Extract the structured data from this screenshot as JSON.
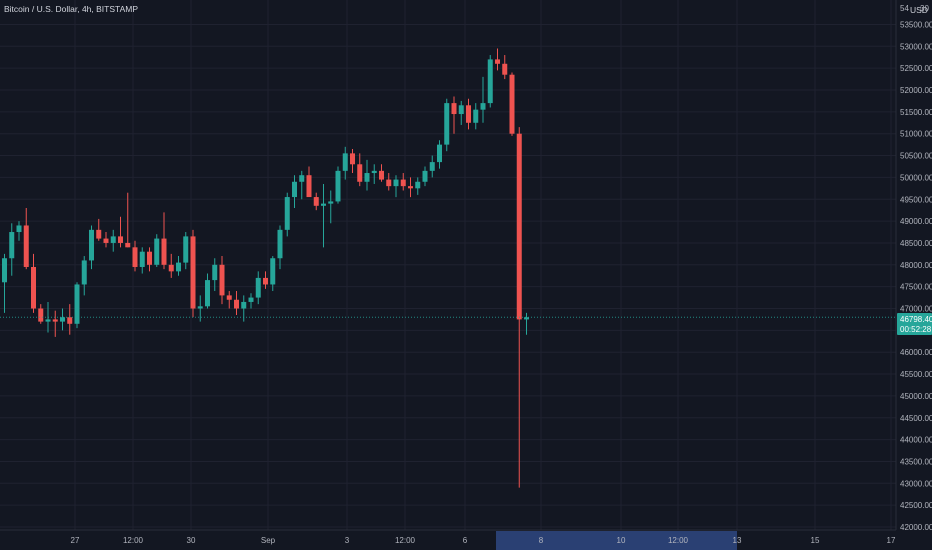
{
  "header": {
    "title": "Bitcoin / U.S. Dollar, 4h, BITSTAMP"
  },
  "price_axis": {
    "unit": "USD",
    "top_label": "54",
    "corner_label": "30"
  },
  "price_tag": {
    "price": "46798.40",
    "countdown": "00:52:28"
  },
  "time_axis": {
    "highlighted_date": "8"
  },
  "colors": {
    "background": "#131722",
    "grid": "#1f2230",
    "up": "#26a69a",
    "down": "#ef5350",
    "tag": "#26a69a",
    "time_highlight": "#2a4073"
  },
  "chart_data": {
    "type": "candlestick",
    "title": "Bitcoin / U.S. Dollar, 4h, BITSTAMP",
    "ylabel": "USD",
    "ylim": [
      41850,
      54300
    ],
    "y_ticks": [
      "42000.00",
      "42500.00",
      "43000.00",
      "43500.00",
      "44000.00",
      "44500.00",
      "45000.00",
      "45500.00",
      "46000.00",
      "46500.00",
      "47000.00",
      "47500.00",
      "48000.00",
      "48500.00",
      "49000.00",
      "49500.00",
      "50000.00",
      "50500.00",
      "51000.00",
      "51500.00",
      "52000.00",
      "52500.00",
      "53000.00",
      "53500.00"
    ],
    "x_tick_labels": [
      "27",
      "12:00",
      "30",
      "Sep",
      "3",
      "12:00",
      "6",
      "8",
      "10",
      "12:00",
      "13",
      "15",
      "17"
    ],
    "candles": [
      {
        "o": 47600,
        "h": 48250,
        "l": 46900,
        "c": 48150
      },
      {
        "o": 48150,
        "h": 48950,
        "l": 47750,
        "c": 48750
      },
      {
        "o": 48750,
        "h": 49000,
        "l": 48550,
        "c": 48900
      },
      {
        "o": 48900,
        "h": 49300,
        "l": 47900,
        "c": 47950
      },
      {
        "o": 47950,
        "h": 48250,
        "l": 46900,
        "c": 47000
      },
      {
        "o": 47000,
        "h": 47100,
        "l": 46650,
        "c": 46700
      },
      {
        "o": 46700,
        "h": 47150,
        "l": 46450,
        "c": 46750
      },
      {
        "o": 46750,
        "h": 46950,
        "l": 46350,
        "c": 46700
      },
      {
        "o": 46700,
        "h": 47000,
        "l": 46500,
        "c": 46800
      },
      {
        "o": 46800,
        "h": 47100,
        "l": 46400,
        "c": 46650
      },
      {
        "o": 46650,
        "h": 47600,
        "l": 46550,
        "c": 47550
      },
      {
        "o": 47550,
        "h": 48200,
        "l": 47300,
        "c": 48100
      },
      {
        "o": 48100,
        "h": 48900,
        "l": 47900,
        "c": 48800
      },
      {
        "o": 48800,
        "h": 49050,
        "l": 48550,
        "c": 48600
      },
      {
        "o": 48600,
        "h": 48750,
        "l": 48400,
        "c": 48500
      },
      {
        "o": 48500,
        "h": 48800,
        "l": 48300,
        "c": 48650
      },
      {
        "o": 48650,
        "h": 49100,
        "l": 48400,
        "c": 48500
      },
      {
        "o": 48500,
        "h": 49650,
        "l": 48400,
        "c": 48400
      },
      {
        "o": 48400,
        "h": 48550,
        "l": 47850,
        "c": 47950
      },
      {
        "o": 47950,
        "h": 48400,
        "l": 47800,
        "c": 48300
      },
      {
        "o": 48300,
        "h": 48400,
        "l": 47850,
        "c": 48000
      },
      {
        "o": 48000,
        "h": 48700,
        "l": 47950,
        "c": 48600
      },
      {
        "o": 48600,
        "h": 49200,
        "l": 47900,
        "c": 48000
      },
      {
        "o": 48000,
        "h": 48250,
        "l": 47700,
        "c": 47850
      },
      {
        "o": 47850,
        "h": 48200,
        "l": 47750,
        "c": 48050
      },
      {
        "o": 48050,
        "h": 48750,
        "l": 47900,
        "c": 48650
      },
      {
        "o": 48650,
        "h": 48800,
        "l": 46800,
        "c": 47000
      },
      {
        "o": 47000,
        "h": 47300,
        "l": 46700,
        "c": 47050
      },
      {
        "o": 47050,
        "h": 47800,
        "l": 47000,
        "c": 47650
      },
      {
        "o": 47650,
        "h": 48150,
        "l": 47400,
        "c": 48000
      },
      {
        "o": 48000,
        "h": 48200,
        "l": 47100,
        "c": 47300
      },
      {
        "o": 47300,
        "h": 47400,
        "l": 47000,
        "c": 47200
      },
      {
        "o": 47200,
        "h": 47400,
        "l": 46850,
        "c": 47000
      },
      {
        "o": 47000,
        "h": 47300,
        "l": 46700,
        "c": 47150
      },
      {
        "o": 47150,
        "h": 47350,
        "l": 47000,
        "c": 47250
      },
      {
        "o": 47250,
        "h": 47850,
        "l": 47100,
        "c": 47700
      },
      {
        "o": 47700,
        "h": 47850,
        "l": 47450,
        "c": 47550
      },
      {
        "o": 47550,
        "h": 48200,
        "l": 47400,
        "c": 48150
      },
      {
        "o": 48150,
        "h": 48900,
        "l": 47900,
        "c": 48800
      },
      {
        "o": 48800,
        "h": 49650,
        "l": 48650,
        "c": 49550
      },
      {
        "o": 49550,
        "h": 50050,
        "l": 49300,
        "c": 49900
      },
      {
        "o": 49900,
        "h": 50150,
        "l": 49500,
        "c": 50050
      },
      {
        "o": 50050,
        "h": 50250,
        "l": 49650,
        "c": 49550
      },
      {
        "o": 49550,
        "h": 49650,
        "l": 49250,
        "c": 49350
      },
      {
        "o": 49350,
        "h": 49850,
        "l": 48400,
        "c": 49400
      },
      {
        "o": 49400,
        "h": 49700,
        "l": 48950,
        "c": 49450
      },
      {
        "o": 49450,
        "h": 50250,
        "l": 49400,
        "c": 50150
      },
      {
        "o": 50150,
        "h": 50700,
        "l": 49950,
        "c": 50550
      },
      {
        "o": 50550,
        "h": 50650,
        "l": 50100,
        "c": 50300
      },
      {
        "o": 50300,
        "h": 50550,
        "l": 49800,
        "c": 49900
      },
      {
        "o": 49900,
        "h": 50400,
        "l": 49700,
        "c": 50100
      },
      {
        "o": 50100,
        "h": 50300,
        "l": 49850,
        "c": 50150
      },
      {
        "o": 50150,
        "h": 50300,
        "l": 49900,
        "c": 49950
      },
      {
        "o": 49950,
        "h": 50100,
        "l": 49700,
        "c": 49800
      },
      {
        "o": 49800,
        "h": 50050,
        "l": 49550,
        "c": 49950
      },
      {
        "o": 49950,
        "h": 50100,
        "l": 49700,
        "c": 49800
      },
      {
        "o": 49800,
        "h": 50000,
        "l": 49550,
        "c": 49750
      },
      {
        "o": 49750,
        "h": 50000,
        "l": 49600,
        "c": 49900
      },
      {
        "o": 49900,
        "h": 50250,
        "l": 49800,
        "c": 50150
      },
      {
        "o": 50150,
        "h": 50500,
        "l": 50000,
        "c": 50350
      },
      {
        "o": 50350,
        "h": 50850,
        "l": 50200,
        "c": 50750
      },
      {
        "o": 50750,
        "h": 51800,
        "l": 50600,
        "c": 51700
      },
      {
        "o": 51700,
        "h": 51850,
        "l": 51000,
        "c": 51450
      },
      {
        "o": 51450,
        "h": 51750,
        "l": 51200,
        "c": 51650
      },
      {
        "o": 51650,
        "h": 51800,
        "l": 51100,
        "c": 51250
      },
      {
        "o": 51250,
        "h": 51700,
        "l": 51100,
        "c": 51550
      },
      {
        "o": 51550,
        "h": 52300,
        "l": 51250,
        "c": 51700
      },
      {
        "o": 51700,
        "h": 52800,
        "l": 51600,
        "c": 52700
      },
      {
        "o": 52700,
        "h": 52950,
        "l": 52450,
        "c": 52600
      },
      {
        "o": 52600,
        "h": 52800,
        "l": 52250,
        "c": 52350
      },
      {
        "o": 52350,
        "h": 52400,
        "l": 50950,
        "c": 51000
      },
      {
        "o": 51000,
        "h": 51150,
        "l": 42900,
        "c": 46750
      },
      {
        "o": 46750,
        "h": 46900,
        "l": 46400,
        "c": 46800
      }
    ]
  }
}
